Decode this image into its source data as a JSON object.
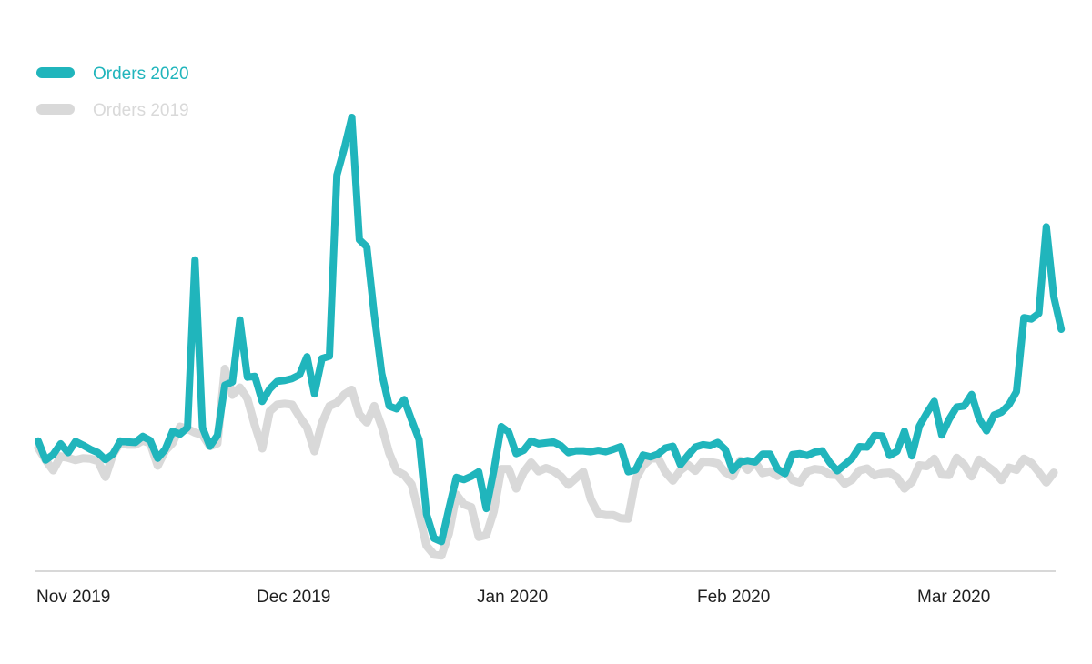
{
  "chart_data": {
    "type": "line",
    "title": "",
    "xlabel": "",
    "ylabel": "",
    "grid": false,
    "legend_position": "top-left",
    "x_ticks": [
      "Nov 2019",
      "Dec 2019",
      "Jan 2020",
      "Feb 2020",
      "Mar 2020"
    ],
    "x_range": [
      0,
      136
    ],
    "y_range": [
      0,
      100
    ],
    "colors": {
      "Orders 2020": "#20b5bc",
      "Orders 2019": "#d9d9d9",
      "axis": "#cccccc"
    },
    "series": [
      {
        "name": "Orders 2020",
        "values": [
          26.4,
          22.3,
          23.5,
          25.8,
          23.9,
          26.3,
          25.5,
          24.6,
          23.9,
          22.4,
          23.6,
          26.4,
          26.2,
          26.1,
          27.4,
          26.5,
          22.7,
          24.6,
          28.5,
          27.9,
          29.3,
          65.3,
          29.3,
          25.3,
          27.6,
          38.4,
          39.1,
          52.4,
          40.1,
          40.3,
          34.9,
          37.6,
          39.2,
          39.4,
          39.8,
          40.6,
          44.5,
          36.5,
          44.1,
          44.6,
          83.5,
          89.3,
          95.9,
          69.6,
          68.1,
          53.5,
          40.9,
          33.9,
          33.3,
          35.3,
          30.9,
          26.7,
          10.7,
          5.5,
          4.8,
          11.9,
          18.6,
          18.1,
          18.8,
          19.8,
          11.9,
          20.0,
          29.5,
          28.3,
          23.7,
          24.4,
          26.4,
          25.8,
          26.0,
          26.2,
          25.4,
          23.9,
          24.3,
          24.3,
          24.1,
          24.4,
          24.1,
          24.6,
          25.2,
          19.8,
          20.2,
          23.4,
          23.0,
          23.6,
          24.9,
          25.3,
          21.3,
          23.3,
          25.1,
          25.6,
          25.4,
          26.1,
          24.6,
          20.1,
          21.9,
          22.2,
          21.9,
          23.6,
          23.6,
          20.4,
          19.4,
          23.5,
          23.7,
          23.3,
          24.0,
          24.3,
          21.8,
          20.0,
          21.3,
          22.7,
          25.2,
          25.1,
          27.6,
          27.5,
          23.3,
          24.2,
          28.5,
          23.2,
          29.6,
          32.4,
          34.9,
          27.7,
          31.1,
          33.7,
          33.9,
          36.4,
          31.2,
          28.6,
          32.0,
          32.6,
          34.2,
          37.0,
          52.9,
          52.6,
          53.8,
          72.4,
          57.4,
          50.4
        ],
        "stroke_width": 8
      },
      {
        "name": "Orders 2019",
        "values": [
          24.9,
          22.3,
          20.1,
          23.1,
          22.8,
          22.3,
          22.7,
          22.6,
          22.1,
          18.7,
          23.5,
          26.1,
          25.6,
          25.6,
          26.5,
          25.9,
          21.1,
          24.3,
          26.0,
          29.5,
          29.0,
          28.2,
          27.7,
          25.3,
          25.9,
          41.9,
          36.3,
          37.9,
          35.5,
          29.8,
          24.8,
          32.8,
          34.2,
          34.4,
          34.2,
          31.6,
          29.3,
          24.2,
          30.3,
          33.9,
          34.6,
          36.4,
          37.4,
          32.1,
          30.4,
          33.9,
          29.5,
          23.8,
          20.0,
          19.1,
          17.1,
          10.7,
          3.9,
          2.0,
          1.8,
          6.5,
          14.9,
          12.8,
          12.2,
          5.8,
          6.2,
          11.3,
          20.4,
          20.4,
          16.2,
          19.7,
          21.8,
          19.9,
          20.6,
          20.0,
          18.8,
          17.0,
          18.4,
          19.8,
          13.9,
          10.8,
          10.5,
          10.5,
          9.8,
          9.7,
          18.2,
          21.1,
          22.6,
          22.8,
          19.7,
          17.9,
          20.1,
          21.3,
          20.0,
          22.0,
          21.9,
          21.6,
          19.7,
          18.8,
          22.2,
          20.2,
          21.9,
          19.5,
          19.9,
          18.9,
          20.1,
          18.0,
          17.5,
          19.9,
          20.4,
          20.2,
          19.2,
          19.1,
          17.2,
          18.1,
          20.1,
          20.5,
          19.0,
          19.5,
          19.6,
          18.6,
          16.2,
          17.6,
          21.2,
          21.0,
          22.6,
          19.2,
          19.1,
          22.8,
          21.3,
          18.8,
          22.4,
          21.1,
          19.9,
          18.0,
          20.7,
          20.2,
          22.6,
          21.7,
          19.7,
          17.5,
          19.6
        ],
        "stroke_width": 9
      }
    ]
  }
}
